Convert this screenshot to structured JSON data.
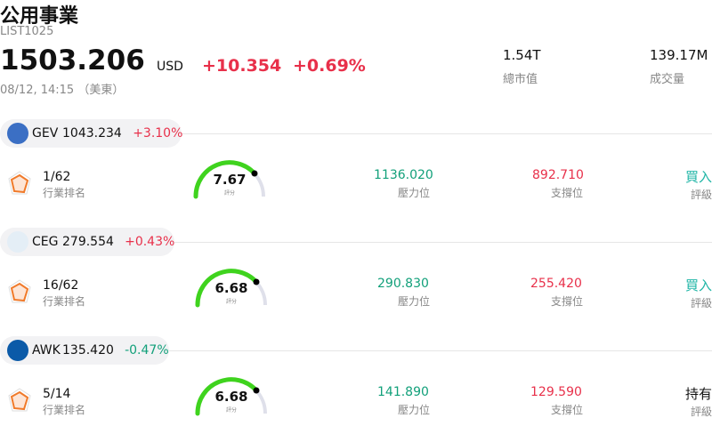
{
  "header": {
    "title": "公用事業",
    "code": "LIST1025",
    "price": "1503.206",
    "currency": "USD",
    "change": "+10.354",
    "change_percent": "+0.69%",
    "time": "08/12, 14:15 （美東）",
    "stats": [
      {
        "value": "1.54T",
        "label": "總市值"
      },
      {
        "value": "139.17M",
        "label": "成交量"
      }
    ]
  },
  "stocks": [
    {
      "ticker": "GEV",
      "price": "1043.234",
      "change": "+3.10%",
      "rank": "1/62",
      "rank_label": "行業排名",
      "score": "7.67",
      "score_label": "評分",
      "resistance": "1136.020",
      "resistance_label": "壓力位",
      "support": "892.710",
      "support_label": "支撐位",
      "rating": "買入",
      "rating_label": "評級",
      "rating_color": "#1fb5a6"
    },
    {
      "ticker": "CEG",
      "price": "279.554",
      "change": "+0.43%",
      "rank": "16/62",
      "rank_label": "行業排名",
      "score": "6.68",
      "score_label": "評分",
      "resistance": "290.830",
      "resistance_label": "壓力位",
      "support": "255.420",
      "support_label": "支撐位",
      "rating": "買入",
      "rating_label": "評級",
      "rating_color": "#1fb5a6"
    },
    {
      "ticker": "AWK",
      "price": "135.420",
      "change": "-0.47%",
      "rank": "5/14",
      "rank_label": "行業排名",
      "score": "6.68",
      "score_label": "評分",
      "resistance": "141.890",
      "resistance_label": "壓力位",
      "support": "129.590",
      "support_label": "支撐位",
      "rating": "持有",
      "rating_label": "評級",
      "rating_color": "#111111"
    }
  ]
}
